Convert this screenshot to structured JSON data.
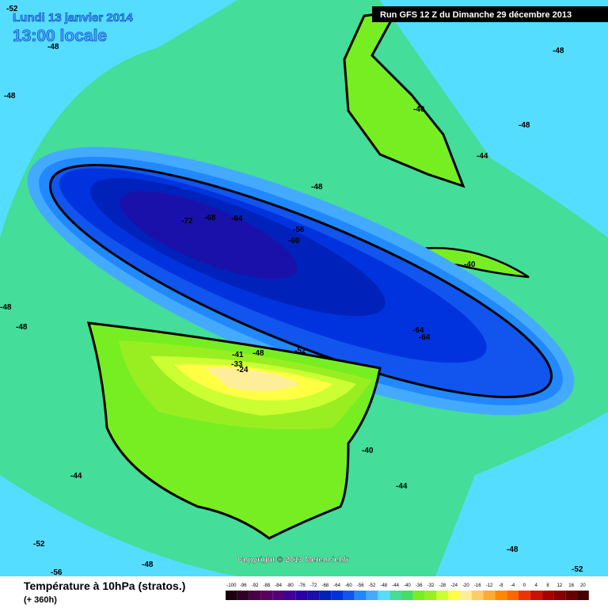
{
  "header": {
    "date": "Lundi 13 janvier 2014",
    "time": "13:00 locale",
    "run": "Run GFS 12 Z du Dimanche 29 décembre 2013"
  },
  "contour_labels": [
    "-52",
    "-48",
    "-48",
    "-48",
    "-48",
    "-40",
    "-44",
    "-48",
    "-72",
    "-68",
    "-64",
    "-56",
    "-60",
    "-40",
    "-48",
    "-48",
    "-64",
    "-64",
    "-52",
    "-48",
    "-41",
    "-33",
    "-24",
    "-40",
    "-44",
    "-44",
    "-52",
    "-48",
    "-48",
    "-56",
    "-52"
  ],
  "copyright": "Copyright © 2013 Meteociel.fr",
  "footer": {
    "title": "Température à 10hPa (stratos.)",
    "lead": "(+ 360h)"
  },
  "scale": {
    "labels": [
      -100,
      -96,
      -92,
      -88,
      -84,
      -80,
      -76,
      -72,
      -68,
      -64,
      -60,
      -56,
      -52,
      -48,
      -44,
      -40,
      -36,
      -32,
      -28,
      -24,
      -20,
      -16,
      -12,
      -8,
      -4,
      0,
      4,
      8,
      12,
      16,
      20
    ],
    "colors": [
      "#1a0010",
      "#33002a",
      "#4a0044",
      "#5a005e",
      "#55007a",
      "#400099",
      "#2a00aa",
      "#1a11aa",
      "#0022bb",
      "#0033dd",
      "#1155ee",
      "#2288ff",
      "#44aaff",
      "#55ddff",
      "#44dd99",
      "#44dd66",
      "#77ee22",
      "#99ee22",
      "#ccff33",
      "#ffff44",
      "#ffee99",
      "#ffcc66",
      "#ffaa33",
      "#ff8800",
      "#ff6600",
      "#ee3300",
      "#cc1100",
      "#aa0000",
      "#880000",
      "#660000",
      "#440000"
    ]
  }
}
